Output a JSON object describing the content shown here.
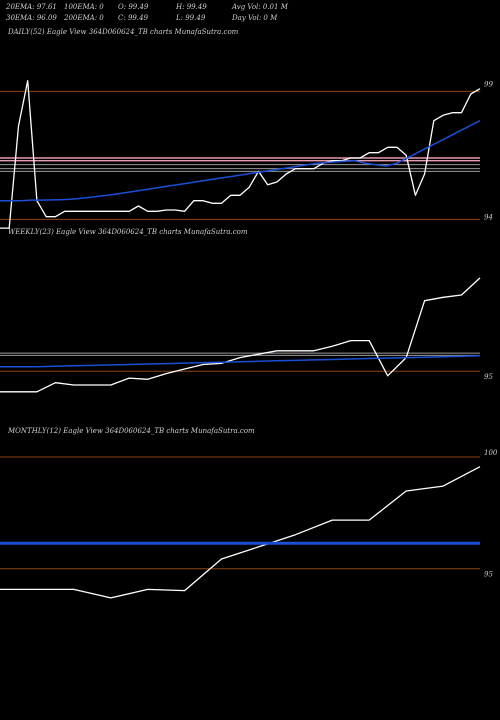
{
  "header": {
    "row1": [
      {
        "text": "20EMA: 97.61"
      },
      {
        "text": "100EMA: 0"
      },
      {
        "text": "O: 99.49"
      },
      {
        "text": "H: 99.49"
      },
      {
        "text": "Avg Vol: 0.01 M"
      }
    ],
    "row2": [
      {
        "text": "30EMA: 96.09"
      },
      {
        "text": "200EMA: 0"
      },
      {
        "text": "C: 99.49"
      },
      {
        "text": "L: 99.49"
      },
      {
        "text": "Day Vol: 0  M"
      }
    ]
  },
  "colors": {
    "price": "#ffffff",
    "ema": "#1a4fd6",
    "ref_line": "#8b4513",
    "pink_line": "#e89ab0",
    "grey_line": "#9a9a9a"
  },
  "chart_data": [
    {
      "type": "line",
      "label": "DAILY(52) Eagle  View  364D060624_TB charts MunafaSutra.com",
      "ylim": [
        93.5,
        99.5
      ],
      "yticks": [
        {
          "label": "99",
          "value": 99
        },
        {
          "label": "94",
          "value": 94
        }
      ],
      "series": [
        {
          "role": "price",
          "values": [
            93.57,
            93.57,
            97.4,
            99.1,
            94.6,
            94,
            94,
            94.2,
            94.2,
            94.2,
            94.2,
            94.2,
            94.2,
            94.2,
            94.2,
            94.4,
            94.2,
            94.2,
            94.25,
            94.25,
            94.2,
            94.6,
            94.6,
            94.5,
            94.5,
            94.8,
            94.8,
            95.1,
            95.7,
            95.2,
            95.3,
            95.6,
            95.8,
            95.8,
            95.8,
            96.0,
            96.1,
            96.1,
            96.2,
            96.2,
            96.4,
            96.4,
            96.6,
            96.6,
            96.3,
            94.8,
            95.6,
            97.6,
            97.8,
            97.9,
            97.9,
            98.6,
            98.8
          ]
        },
        {
          "role": "ema",
          "values": [
            94.6,
            94.6,
            94.6,
            94.62,
            94.62,
            94.63,
            94.64,
            94.66,
            94.7,
            94.74,
            94.79,
            94.84,
            94.9,
            94.96,
            95.02,
            95.08,
            95.14,
            95.2,
            95.26,
            95.32,
            95.38,
            95.44,
            95.5,
            95.56,
            95.62,
            95.68,
            95.74,
            95.8,
            95.86,
            95.92,
            95.98,
            96.02,
            96.05,
            96.08,
            96.1,
            96.0,
            95.95,
            95.9,
            96.0,
            96.2,
            96.4,
            96.6,
            96.8,
            97.0,
            97.2,
            97.4,
            97.6
          ]
        }
      ],
      "reference_lines": [
        {
          "value": 98.7,
          "role": "ref"
        },
        {
          "value": 96.2,
          "role": "pink"
        },
        {
          "value": 96.1,
          "role": "pink"
        },
        {
          "value": 95.95,
          "role": "grey"
        },
        {
          "value": 95.8,
          "role": "grey"
        },
        {
          "value": 95.7,
          "role": "grey"
        },
        {
          "value": 93.9,
          "role": "ref"
        }
      ]
    },
    {
      "type": "line",
      "label": "WEEKLY(23) Eagle  View  364D060624_TB charts MunafaSutra.com",
      "ylim": [
        93.5,
        100.0
      ],
      "yticks": [
        {
          "label": "95",
          "value": 95
        }
      ],
      "series": [
        {
          "role": "price",
          "values": [
            94.3,
            94.3,
            94.3,
            94.7,
            94.6,
            94.6,
            94.6,
            94.9,
            94.85,
            95.1,
            95.3,
            95.5,
            95.55,
            95.8,
            95.95,
            96.1,
            96.1,
            96.1,
            96.3,
            96.55,
            96.55,
            95.0,
            95.8,
            98.3,
            98.45,
            98.55,
            99.3
          ]
        },
        {
          "role": "ema",
          "values": [
            95.4,
            95.4,
            95.4,
            95.42,
            95.44,
            95.46,
            95.48,
            95.5,
            95.52,
            95.54,
            95.56,
            95.58,
            95.6,
            95.62,
            95.64,
            95.66,
            95.68,
            95.7,
            95.72,
            95.74,
            95.76,
            95.78,
            95.8,
            95.82,
            95.84,
            95.86,
            95.88
          ]
        }
      ],
      "reference_lines": [
        {
          "value": 96.0,
          "role": "grey"
        },
        {
          "value": 95.9,
          "role": "grey"
        },
        {
          "value": 95.2,
          "role": "ref"
        }
      ]
    },
    {
      "type": "line",
      "label": "MONTHLY(12) Eagle  View  364D060624_TB charts MunafaSutra.com",
      "ylim": [
        93.5,
        100.5
      ],
      "yticks": [
        {
          "label": "100",
          "value": 100
        },
        {
          "label": "95",
          "value": 95
        }
      ],
      "series": [
        {
          "role": "price",
          "values": [
            94.35,
            94.35,
            94.35,
            94.0,
            94.35,
            94.3,
            95.6,
            96.1,
            96.6,
            97.2,
            97.2,
            98.4,
            98.6,
            99.4
          ]
        },
        {
          "role": "ema",
          "values": [
            96.25,
            96.25,
            96.25,
            96.25,
            96.25,
            96.25,
            96.25,
            96.25,
            96.25,
            96.25,
            96.25,
            96.25,
            96.25,
            96.25
          ]
        }
      ],
      "reference_lines": [
        {
          "value": 99.8,
          "role": "ref"
        },
        {
          "value": 95.2,
          "role": "ref"
        }
      ]
    }
  ]
}
